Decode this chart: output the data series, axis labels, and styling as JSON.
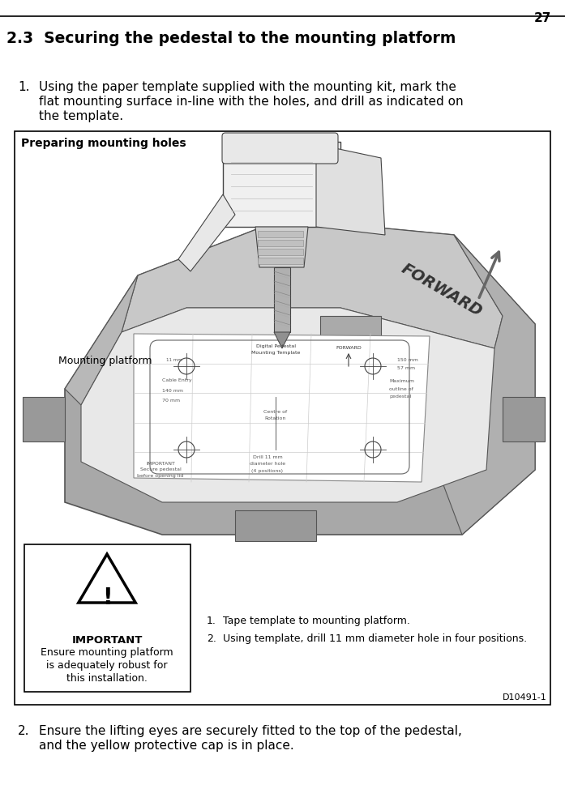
{
  "page_number": "27",
  "section_title": "2.3  Securing the pedestal to the mounting platform",
  "step1_text_line1": "Using the paper template supplied with the mounting kit, mark the",
  "step1_text_line2": "flat mounting surface in-line with the holes, and drill as indicated on",
  "step1_text_line3": "the template.",
  "step2_text_line1": "Ensure the lifting eyes are securely fitted to the top of the pedestal,",
  "step2_text_line2": "and the yellow protective cap is in place.",
  "box_title": "Preparing mounting holes",
  "doc_ref": "D10491-1",
  "important_title": "IMPORTANT",
  "important_text_line1": "Ensure mounting platform",
  "important_text_line2": "is adequately robust for",
  "important_text_line3": "this installation.",
  "list_item1": "Tape template to mounting platform.",
  "list_item2": "Using template, drill 11 mm diameter hole in four positions.",
  "mounting_platform_label": "Mounting platform",
  "forward_text": "FORWARD",
  "bg_color": "#ffffff",
  "box_border": "#000000",
  "platform_dark": "#888888",
  "platform_mid": "#aaaaaa",
  "platform_light": "#cccccc",
  "platform_top": "#dddddd",
  "template_color": "#eeeeee",
  "text_color": "#000000"
}
